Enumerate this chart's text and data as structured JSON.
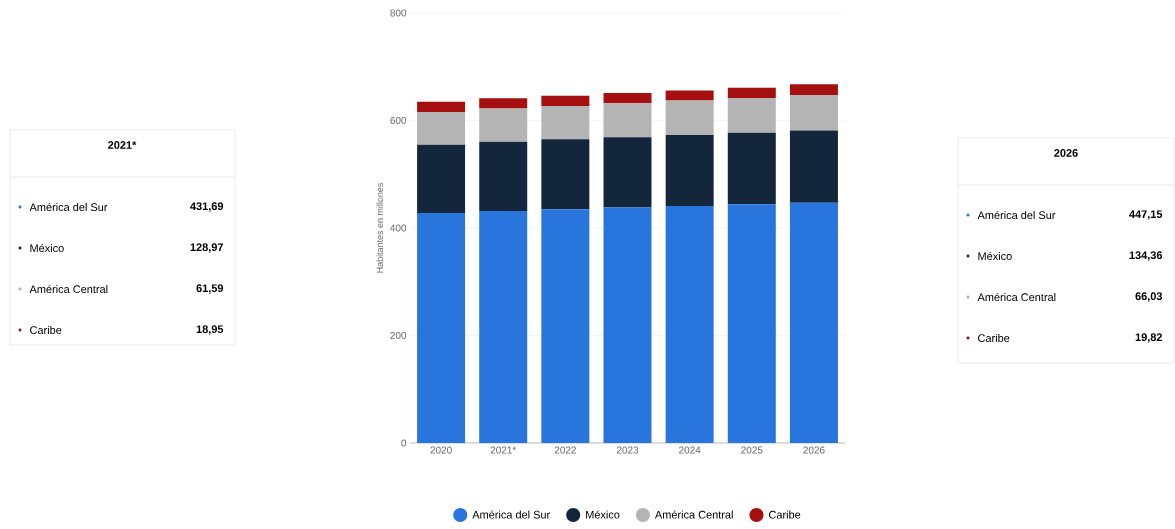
{
  "chart_data": {
    "type": "bar",
    "stacked": true,
    "ylabel": "Habitantes en millones",
    "categories": [
      "2020",
      "2021*",
      "2022",
      "2023",
      "2024",
      "2025",
      "2026"
    ],
    "series": [
      {
        "name": "América del Sur",
        "color": "#2876dd",
        "values": [
          428,
          431.69,
          435,
          438,
          441,
          444,
          447.15
        ]
      },
      {
        "name": "México",
        "color": "#14263c",
        "values": [
          127,
          128.97,
          130,
          131,
          132,
          133,
          134.36
        ]
      },
      {
        "name": "América Central",
        "color": "#b4b4b4",
        "values": [
          61,
          61.59,
          62,
          63,
          64,
          65,
          66.03
        ]
      },
      {
        "name": "Caribe",
        "color": "#a50f10",
        "values": [
          19,
          18.95,
          19,
          19,
          19,
          19,
          19.82
        ]
      }
    ],
    "ylim": [
      0,
      800
    ],
    "yticks": [
      0,
      200,
      400,
      600,
      800
    ],
    "grid": "y",
    "legend": "bottom",
    "annotations": [
      "2021*",
      "431,69",
      "128,97",
      "61,59",
      "18,95",
      "2026",
      "447,15",
      "134,36",
      "66,03",
      "19,82"
    ]
  }
}
